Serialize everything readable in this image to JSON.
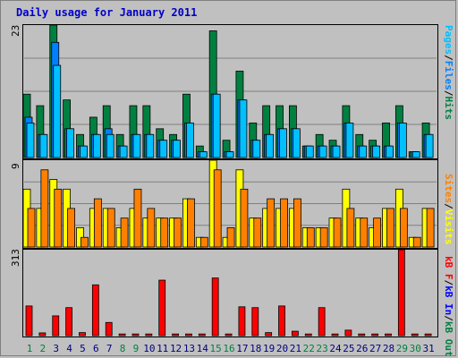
{
  "title": "Daily usage for January 2011",
  "colors": {
    "hits": "#008040",
    "files": "#0080ff",
    "pages": "#00c0ff",
    "visits": "#ffff00",
    "sites": "#ff8000",
    "kb_in": "#0000ff",
    "kb_out": "#008040",
    "kb_f": "#ff0000",
    "weekend_day": "#008040",
    "weekday": "#000080"
  },
  "chart_data": [
    {
      "type": "bar",
      "panel": "hits-files-pages",
      "ymax_label": "23",
      "ylim": [
        0,
        23
      ],
      "categories": [
        "1",
        "2",
        "3",
        "4",
        "5",
        "6",
        "7",
        "8",
        "9",
        "10",
        "11",
        "12",
        "13",
        "14",
        "15",
        "16",
        "17",
        "18",
        "19",
        "20",
        "21",
        "22",
        "23",
        "24",
        "25",
        "26",
        "27",
        "28",
        "29",
        "30",
        "31"
      ],
      "weekend_days": [
        1,
        2,
        8,
        9,
        15,
        16,
        22,
        23,
        29,
        30
      ],
      "legend": {
        "hits": "Hits",
        "files": "Files",
        "pages": "Pages",
        "sep": "/"
      },
      "series": [
        {
          "name": "Hits",
          "values": [
            11,
            9,
            23,
            10,
            4,
            7,
            9,
            4,
            9,
            9,
            5,
            4,
            11,
            2,
            22,
            3,
            15,
            6,
            9,
            9,
            9,
            2,
            4,
            3,
            9,
            4,
            3,
            6,
            9,
            1,
            6
          ]
        },
        {
          "name": "Files",
          "values": [
            7,
            4,
            20,
            5,
            2,
            4,
            5,
            2,
            4,
            4,
            3,
            3,
            6,
            1,
            11,
            1,
            10,
            3,
            4,
            5,
            5,
            2,
            2,
            2,
            6,
            2,
            2,
            2,
            6,
            1,
            4
          ]
        },
        {
          "name": "Pages",
          "values": [
            6,
            4,
            16,
            5,
            2,
            4,
            4,
            2,
            4,
            4,
            3,
            3,
            6,
            1,
            11,
            1,
            10,
            3,
            4,
            5,
            5,
            2,
            2,
            2,
            6,
            2,
            2,
            2,
            6,
            1,
            4
          ]
        }
      ]
    },
    {
      "type": "bar",
      "panel": "visits-sites",
      "ymax_label": "9",
      "ylim": [
        0,
        9
      ],
      "categories": [
        "1",
        "2",
        "3",
        "4",
        "5",
        "6",
        "7",
        "8",
        "9",
        "10",
        "11",
        "12",
        "13",
        "14",
        "15",
        "16",
        "17",
        "18",
        "19",
        "20",
        "21",
        "22",
        "23",
        "24",
        "25",
        "26",
        "27",
        "28",
        "29",
        "30",
        "31"
      ],
      "legend": {
        "visits": "Visits",
        "sites": "Sites",
        "sep": "/"
      },
      "series": [
        {
          "name": "Visits",
          "values": [
            6,
            4,
            7,
            6,
            2,
            4,
            4,
            2,
            4,
            3,
            3,
            3,
            5,
            1,
            9,
            1,
            8,
            3,
            4,
            4,
            4,
            2,
            2,
            3,
            6,
            3,
            2,
            4,
            6,
            1,
            4
          ]
        },
        {
          "name": "Sites",
          "values": [
            4,
            8,
            6,
            4,
            1,
            5,
            4,
            3,
            6,
            4,
            3,
            3,
            5,
            1,
            8,
            2,
            6,
            3,
            5,
            5,
            5,
            2,
            2,
            3,
            4,
            3,
            3,
            4,
            4,
            1,
            4
          ]
        }
      ]
    },
    {
      "type": "bar",
      "panel": "kbytes",
      "ymax_label": "313",
      "ylim": [
        0,
        313
      ],
      "categories": [
        "1",
        "2",
        "3",
        "4",
        "5",
        "6",
        "7",
        "8",
        "9",
        "10",
        "11",
        "12",
        "13",
        "14",
        "15",
        "16",
        "17",
        "18",
        "19",
        "20",
        "21",
        "22",
        "23",
        "24",
        "25",
        "26",
        "27",
        "28",
        "29",
        "30",
        "31"
      ],
      "legend": {
        "kb_f": "kB F",
        "kb_in": "kB In",
        "kb_out": "kB Out",
        "sep": "/"
      },
      "series": [
        {
          "name": "kB F",
          "values": [
            108,
            10,
            72,
            102,
            11,
            185,
            48,
            6,
            6,
            6,
            202,
            6,
            6,
            6,
            210,
            6,
            105,
            102,
            11,
            108,
            16,
            6,
            102,
            6,
            20,
            6,
            6,
            6,
            313,
            6,
            6
          ]
        }
      ]
    }
  ]
}
